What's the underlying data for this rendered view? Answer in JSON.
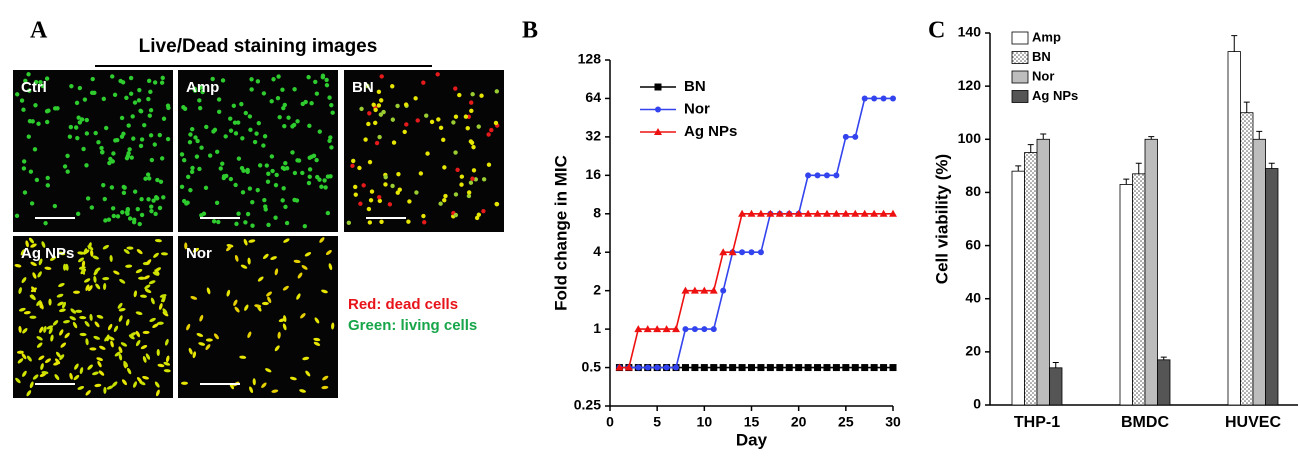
{
  "images_panel": {
    "panel_label": "A",
    "title": "Live/Dead staining images",
    "images": [
      "Ctrl",
      "Amp",
      "BN",
      "Ag NPs",
      "Nor"
    ],
    "legend": [
      "Red: dead cells",
      "Green: living cells"
    ]
  },
  "chart_data": [
    {
      "type": "line",
      "panel_label": "B",
      "x_label": "Day",
      "y_label": "Fold change in MIC",
      "x": [
        1,
        2,
        3,
        4,
        5,
        6,
        7,
        8,
        9,
        10,
        11,
        12,
        13,
        14,
        15,
        16,
        17,
        18,
        19,
        20,
        21,
        22,
        23,
        24,
        25,
        26,
        27,
        28,
        29,
        30
      ],
      "series": [
        {
          "name": "BN",
          "color": "#000000",
          "marker": "square",
          "values": [
            0.5,
            0.5,
            0.5,
            0.5,
            0.5,
            0.5,
            0.5,
            0.5,
            0.5,
            0.5,
            0.5,
            0.5,
            0.5,
            0.5,
            0.5,
            0.5,
            0.5,
            0.5,
            0.5,
            0.5,
            0.5,
            0.5,
            0.5,
            0.5,
            0.5,
            0.5,
            0.5,
            0.5,
            0.5,
            0.5
          ]
        },
        {
          "name": "Nor",
          "color": "#3344ee",
          "marker": "circle",
          "values": [
            0.5,
            0.5,
            0.5,
            0.5,
            0.5,
            0.5,
            0.5,
            1,
            1,
            1,
            1,
            2,
            4,
            4,
            4,
            4,
            8,
            8,
            8,
            8,
            16,
            16,
            16,
            16,
            32,
            32,
            64,
            64,
            64,
            64
          ]
        },
        {
          "name": "Ag NPs",
          "color": "#ee1111",
          "marker": "triangle",
          "values": [
            0.5,
            0.5,
            1,
            1,
            1,
            1,
            1,
            2,
            2,
            2,
            2,
            4,
            4,
            8,
            8,
            8,
            8,
            8,
            8,
            8,
            8,
            8,
            8,
            8,
            8,
            8,
            8,
            8,
            8,
            8
          ]
        }
      ],
      "xlim": [
        0,
        30
      ],
      "xticks": [
        0,
        5,
        10,
        15,
        20,
        25,
        30
      ],
      "ylim": [
        0.25,
        128
      ],
      "log_base": 2,
      "yticks": [
        0.25,
        0.5,
        1,
        2,
        4,
        8,
        16,
        32,
        64,
        128
      ]
    },
    {
      "type": "bar",
      "panel_label": "C",
      "y_label": "Cell  viability  (%)",
      "categories": [
        "THP-1",
        "BMDC",
        "HUVEC"
      ],
      "series": [
        {
          "name": "Amp",
          "color": "#ffffff",
          "values": [
            88,
            83,
            133
          ],
          "errors": [
            2,
            2,
            6
          ]
        },
        {
          "name": "BN",
          "color": "dots",
          "values": [
            95,
            87,
            110
          ],
          "errors": [
            3,
            4,
            4
          ]
        },
        {
          "name": "Nor",
          "color": "#bdbdbd",
          "values": [
            100,
            100,
            100
          ],
          "errors": [
            2,
            1,
            3
          ]
        },
        {
          "name": "Ag NPs",
          "color": "#555555",
          "values": [
            14,
            17,
            89
          ],
          "errors": [
            2,
            1,
            2
          ]
        }
      ],
      "ylim": [
        0,
        140
      ],
      "yticks": [
        0,
        20,
        40,
        60,
        80,
        100,
        120,
        140
      ]
    }
  ]
}
